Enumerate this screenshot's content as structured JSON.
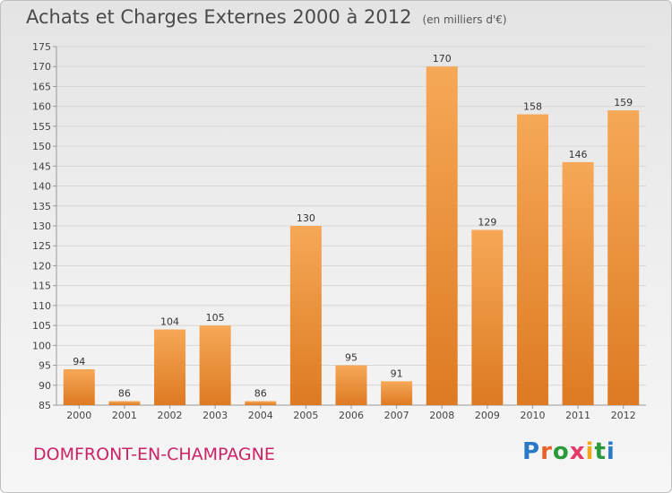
{
  "title": "Achats et Charges Externes 2000 à 2012",
  "subtitle": "(en milliers d'€)",
  "commune": "DOMFRONT-EN-CHAMPAGNE",
  "logo": {
    "letters": [
      "P",
      "r",
      "o",
      "x",
      "i",
      "t",
      "i"
    ]
  },
  "colors": {
    "bar_light": "#f6a857",
    "bar_dark": "#dd7a22",
    "axis": "#999999",
    "grid": "#d6d6d6",
    "commune_text": "#cc2266"
  },
  "chart_data": {
    "type": "bar",
    "categories": [
      "2000",
      "2001",
      "2002",
      "2003",
      "2004",
      "2005",
      "2006",
      "2007",
      "2008",
      "2009",
      "2010",
      "2011",
      "2012"
    ],
    "values": [
      94,
      86,
      104,
      105,
      86,
      130,
      95,
      91,
      170,
      129,
      158,
      146,
      159
    ],
    "data_labels": [
      "94",
      "86",
      "104",
      "105",
      "86",
      "130",
      "95",
      "91",
      "170",
      "129",
      "158",
      "146",
      "159"
    ],
    "ylim": [
      85,
      175
    ],
    "yticks": [
      85,
      90,
      95,
      100,
      105,
      110,
      115,
      120,
      125,
      130,
      135,
      140,
      145,
      150,
      155,
      160,
      165,
      170,
      175
    ],
    "grid": true
  }
}
